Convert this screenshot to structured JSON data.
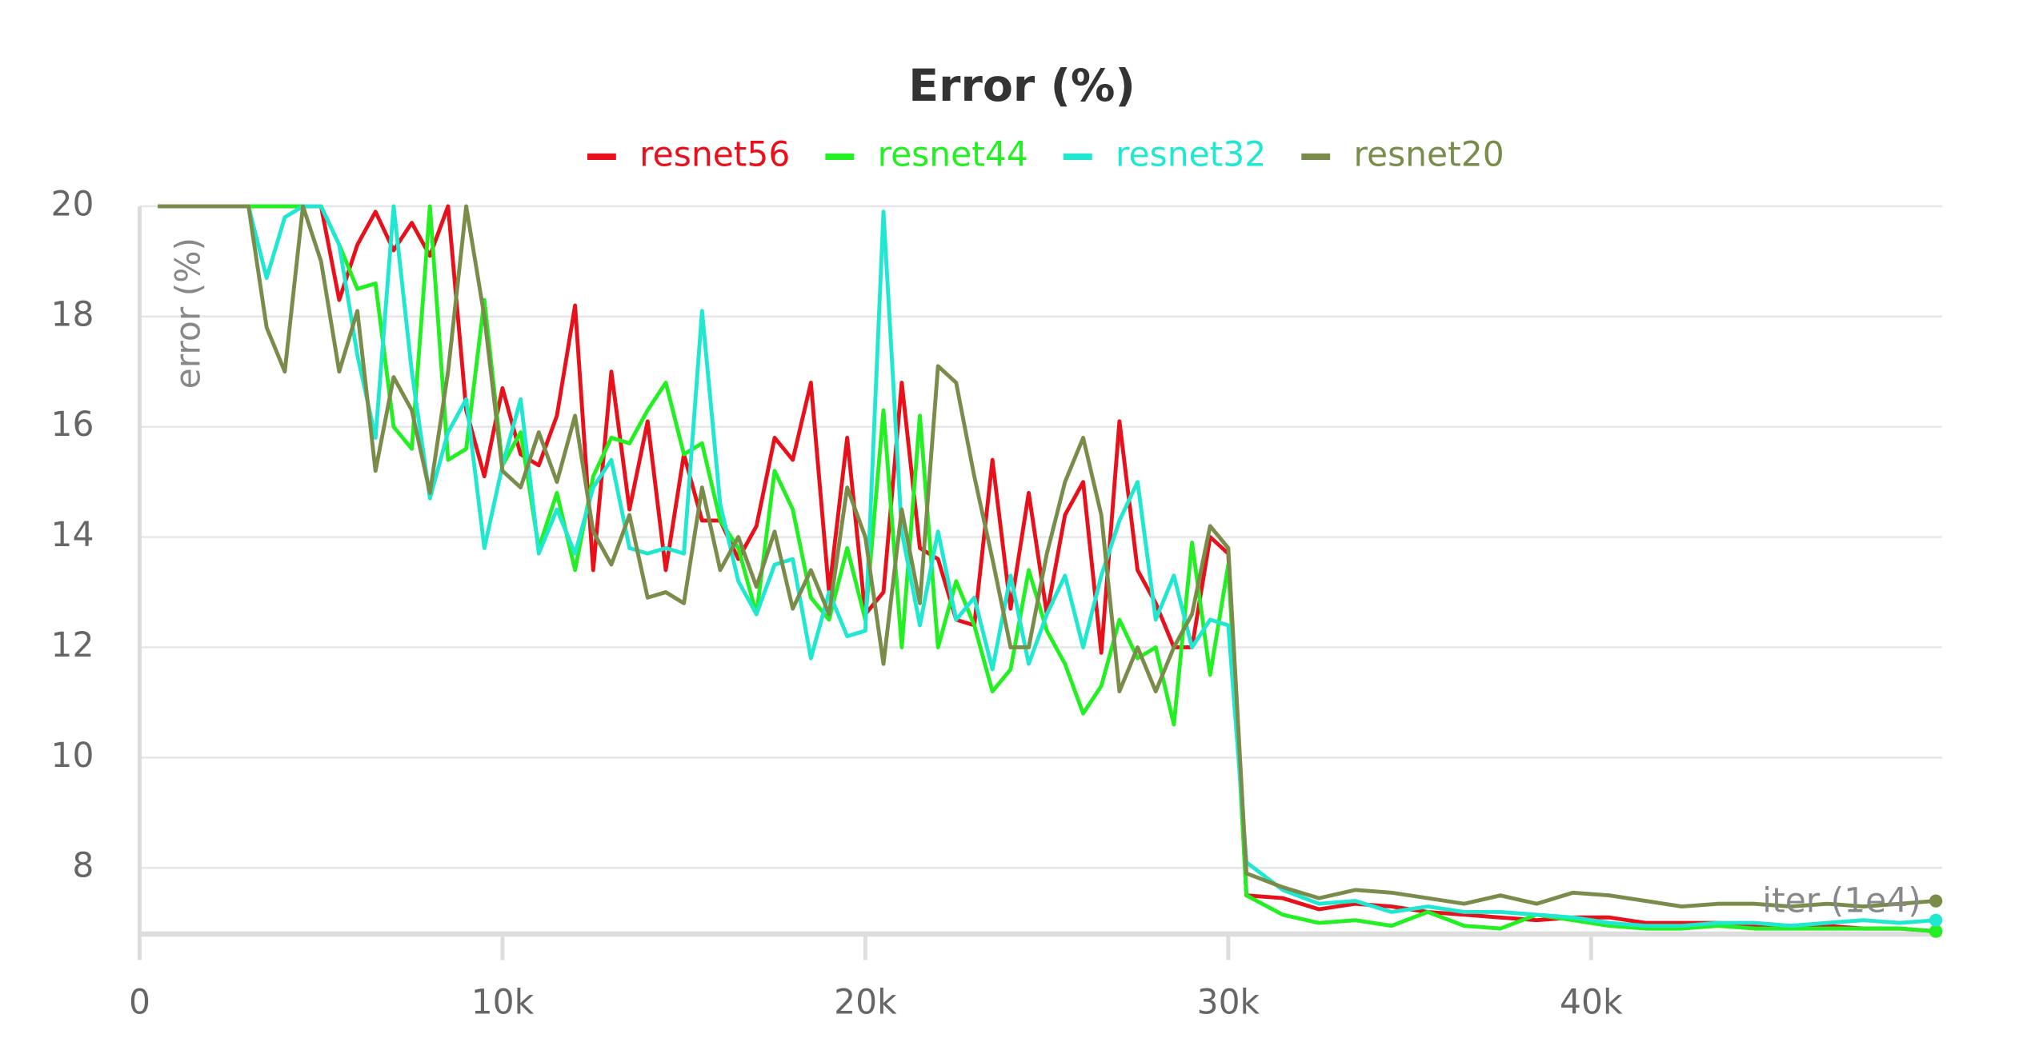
{
  "chart_data": {
    "type": "line",
    "title": "Error (%)",
    "xlabel": "iter (1e4)",
    "ylabel": "error (%)",
    "x": [
      500,
      1000,
      1500,
      2000,
      2500,
      3000,
      3500,
      4000,
      4500,
      5000,
      5500,
      6000,
      6500,
      7000,
      7500,
      8000,
      8500,
      9000,
      9500,
      10000,
      10500,
      11000,
      11500,
      12000,
      12500,
      13000,
      13500,
      14000,
      14500,
      15000,
      15500,
      16000,
      16500,
      17000,
      17500,
      18000,
      18500,
      19000,
      19500,
      20000,
      20500,
      21000,
      21500,
      22000,
      22500,
      23000,
      23500,
      24000,
      24500,
      25000,
      25500,
      26000,
      26500,
      27000,
      27500,
      28000,
      28500,
      29000,
      29500,
      30000,
      30500,
      31500,
      32500,
      33500,
      34500,
      35500,
      36500,
      37500,
      38500,
      39500,
      40500,
      41500,
      42500,
      43500,
      44500,
      45500,
      46500,
      47500,
      48500,
      49500
    ],
    "series": [
      {
        "name": "resnet56",
        "color": "#e8101a",
        "values": [
          20,
          20,
          20,
          20,
          20,
          20,
          20,
          20,
          20,
          20,
          18.3,
          19.3,
          19.9,
          19.2,
          19.7,
          19.1,
          20,
          16.3,
          15.1,
          16.7,
          15.5,
          15.3,
          16.2,
          18.2,
          13.4,
          17.0,
          14.5,
          16.1,
          13.4,
          15.5,
          14.3,
          14.3,
          13.6,
          14.2,
          15.8,
          15.4,
          16.8,
          13.0,
          15.8,
          12.6,
          13.0,
          16.8,
          13.8,
          13.6,
          12.5,
          12.4,
          15.4,
          12.7,
          14.8,
          12.6,
          14.4,
          15.0,
          11.9,
          16.1,
          13.4,
          12.8,
          12.0,
          12.0,
          14.0,
          13.7,
          7.5,
          7.45,
          7.25,
          7.35,
          7.3,
          7.2,
          7.15,
          7.1,
          7.05,
          7.1,
          7.1,
          7.0,
          7.0,
          7.0,
          6.95,
          6.95,
          6.95,
          6.9,
          6.9,
          6.85
        ]
      },
      {
        "name": "resnet44",
        "color": "#22f022",
        "values": [
          20,
          20,
          20,
          20,
          20,
          20,
          20,
          20,
          20,
          20,
          19.3,
          18.5,
          18.6,
          16.0,
          15.6,
          20.0,
          15.4,
          15.6,
          18.3,
          15.3,
          15.9,
          13.8,
          14.8,
          13.4,
          15.1,
          15.8,
          15.7,
          16.3,
          16.8,
          15.5,
          15.7,
          14.3,
          13.8,
          12.6,
          15.2,
          14.5,
          12.9,
          12.5,
          13.8,
          12.5,
          16.3,
          12.0,
          16.2,
          12.0,
          13.2,
          12.4,
          11.2,
          11.6,
          13.4,
          12.3,
          11.7,
          10.8,
          11.3,
          12.5,
          11.8,
          12.0,
          10.6,
          13.9,
          11.5,
          13.5,
          7.5,
          7.15,
          7.0,
          7.05,
          6.95,
          7.2,
          6.95,
          6.9,
          7.15,
          7.05,
          6.95,
          6.9,
          6.9,
          6.95,
          6.9,
          6.9,
          6.9,
          6.9,
          6.9,
          6.85
        ]
      },
      {
        "name": "resnet32",
        "color": "#20e8d0",
        "values": [
          20,
          20,
          20,
          20,
          20,
          20,
          18.7,
          19.8,
          20,
          20,
          19.3,
          17.3,
          15.8,
          20.0,
          17.0,
          14.7,
          15.9,
          16.5,
          13.8,
          15.3,
          16.5,
          13.7,
          14.5,
          13.7,
          14.9,
          15.4,
          13.8,
          13.7,
          13.8,
          13.7,
          18.1,
          14.6,
          13.2,
          12.6,
          13.5,
          13.6,
          11.8,
          13.0,
          12.2,
          12.3,
          19.9,
          14.1,
          12.4,
          14.1,
          12.5,
          12.9,
          11.6,
          13.3,
          11.7,
          12.6,
          13.3,
          12.0,
          13.3,
          14.3,
          15.0,
          12.5,
          13.3,
          12.0,
          12.5,
          12.4,
          8.1,
          7.6,
          7.35,
          7.4,
          7.2,
          7.3,
          7.2,
          7.2,
          7.15,
          7.1,
          7.0,
          6.95,
          6.95,
          7.0,
          7.0,
          6.95,
          7.0,
          7.05,
          7.0,
          7.05
        ]
      },
      {
        "name": "resnet20",
        "color": "#7a8c4a",
        "values": [
          20,
          20,
          20,
          20,
          20,
          20,
          17.8,
          17.0,
          20,
          19,
          17.0,
          18.1,
          15.2,
          16.9,
          16.3,
          14.8,
          17.0,
          20.0,
          18.0,
          15.2,
          14.9,
          15.9,
          15.0,
          16.2,
          14.1,
          13.5,
          14.4,
          12.9,
          13.0,
          12.8,
          14.9,
          13.4,
          14.0,
          13.1,
          14.1,
          12.7,
          13.4,
          12.6,
          14.9,
          14.0,
          11.7,
          14.5,
          12.8,
          17.1,
          16.8,
          15.1,
          13.6,
          12.0,
          12.0,
          13.7,
          15.0,
          15.8,
          14.4,
          11.2,
          12.0,
          11.2,
          12.0,
          12.6,
          14.2,
          13.8,
          7.9,
          7.65,
          7.45,
          7.6,
          7.55,
          7.45,
          7.35,
          7.5,
          7.35,
          7.55,
          7.5,
          7.4,
          7.3,
          7.35,
          7.35,
          7.3,
          7.35,
          7.3,
          7.35,
          7.4
        ]
      }
    ],
    "xlim": [
      0,
      49600
    ],
    "xticks": [
      0,
      {
        "value": 10000,
        "label": "10k"
      },
      {
        "value": 20000,
        "label": "20k"
      },
      {
        "value": 30000,
        "label": "30k"
      },
      {
        "value": 40000,
        "label": "40k"
      }
    ],
    "ylim": [
      6.8,
      20
    ],
    "yticks": [
      8,
      10,
      12,
      14,
      16,
      18,
      20
    ],
    "grid": true,
    "legend": "top"
  }
}
